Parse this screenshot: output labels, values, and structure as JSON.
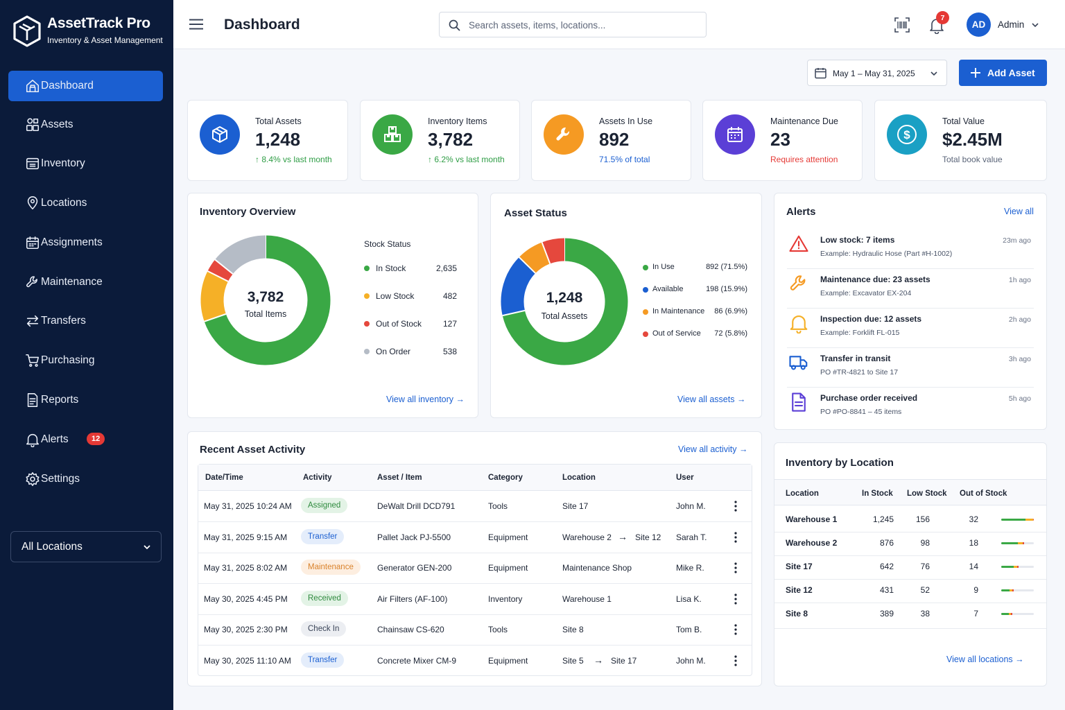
{
  "app": {
    "title": "AssetTrack Pro",
    "subtitle": "Inventory & Asset Management"
  },
  "sidebar": {
    "items": [
      {
        "label": "Dashboard",
        "icon": "home-icon",
        "active": true
      },
      {
        "label": "Assets",
        "icon": "assets-icon"
      },
      {
        "label": "Inventory",
        "icon": "inventory-icon"
      },
      {
        "label": "Locations",
        "icon": "location-pin-icon"
      },
      {
        "label": "Assignments",
        "icon": "calendar-icon"
      },
      {
        "label": "Maintenance",
        "icon": "wrench-icon"
      },
      {
        "label": "Transfers",
        "icon": "transfer-arrows-icon"
      },
      {
        "label": "Purchasing",
        "icon": "cart-icon"
      },
      {
        "label": "Reports",
        "icon": "report-icon"
      },
      {
        "label": "Alerts",
        "icon": "bell-icon",
        "badge": "12"
      },
      {
        "label": "Settings",
        "icon": "gear-icon"
      }
    ],
    "location_select": "All Locations"
  },
  "header": {
    "page_title": "Dashboard",
    "search_placeholder": "Search assets, items, locations...",
    "notification_count": "7",
    "avatar_initials": "AD",
    "user_name": "Admin"
  },
  "toolbar": {
    "date_range": "May 1 – May 31, 2025",
    "add_asset_label": "Add Asset"
  },
  "colors": {
    "primary": "#1b5fd1",
    "green": "#3aa845",
    "orange": "#f59a23",
    "red": "#e53935",
    "purple": "#5b3fd6",
    "teal": "#1aa0c4",
    "gray": "#b5bcc6"
  },
  "kpis": [
    {
      "label": "Total Assets",
      "value": "1,248",
      "sub": "↑ 8.4% vs last month",
      "icon": "cube-icon",
      "color": "#1b5fd1",
      "sub_color": "#2e9d45"
    },
    {
      "label": "Inventory Items",
      "value": "3,782",
      "sub": "↑ 6.2% vs last month",
      "icon": "boxes-icon",
      "color": "#3aa845",
      "sub_color": "#2e9d45"
    },
    {
      "label": "Assets In Use",
      "value": "892",
      "sub": "71.5% of total",
      "icon": "wrench-icon",
      "color": "#f59a23",
      "sub_color": "#1b5fd1"
    },
    {
      "label": "Maintenance Due",
      "value": "23",
      "sub": "Requires attention",
      "icon": "calendar-icon",
      "color": "#5b3fd6",
      "sub_color": "#e53935"
    },
    {
      "label": "Total Value",
      "value": "$2.45M",
      "sub": "Total book value",
      "icon": "dollar-icon",
      "color": "#1aa0c4",
      "sub_color": "#5a6478"
    }
  ],
  "inventory_overview": {
    "title": "Inventory Overview",
    "center_value": "3,782",
    "center_label": "Total Items",
    "legend_title": "Stock Status",
    "rows": [
      {
        "label": "In Stock",
        "value": "2,635",
        "color": "#3aa845"
      },
      {
        "label": "Low Stock",
        "value": "482",
        "color": "#f5b027"
      },
      {
        "label": "Out of Stock",
        "value": "127",
        "color": "#e5483d"
      },
      {
        "label": "On Order",
        "value": "538",
        "color": "#b5bcc6"
      }
    ],
    "link": "View all inventory"
  },
  "asset_status": {
    "title": "Asset Status",
    "center_value": "1,248",
    "center_label": "Total Assets",
    "rows": [
      {
        "label": "In Use",
        "value": "892 (71.5%)",
        "color": "#3aa845"
      },
      {
        "label": "Available",
        "value": "198 (15.9%)",
        "color": "#1b5fd1"
      },
      {
        "label": "In Maintenance",
        "value": "86 (6.9%)",
        "color": "#f59a23"
      },
      {
        "label": "Out of Service",
        "value": "72 (5.8%)",
        "color": "#e5483d"
      }
    ],
    "link": "View all assets"
  },
  "chart_data": [
    {
      "type": "pie",
      "title": "Inventory Overview",
      "categories": [
        "In Stock",
        "Low Stock",
        "Out of Stock",
        "On Order"
      ],
      "values": [
        2635,
        482,
        127,
        538
      ],
      "total": 3782
    },
    {
      "type": "pie",
      "title": "Asset Status",
      "categories": [
        "In Use",
        "Available",
        "In Maintenance",
        "Out of Service"
      ],
      "values": [
        892,
        198,
        86,
        72
      ],
      "total": 1248
    }
  ],
  "alerts": {
    "title": "Alerts",
    "link": "View all",
    "items": [
      {
        "title": "Low stock: 7 items",
        "sub": "Example: Hydraulic Hose (Part #H-1002)",
        "time": "23m ago",
        "icon": "warning-icon"
      },
      {
        "title": "Maintenance due: 23 assets",
        "sub": "Example: Excavator EX-204",
        "time": "1h ago",
        "icon": "wrench-icon"
      },
      {
        "title": "Inspection due: 12 assets",
        "sub": "Example: Forklift FL-015",
        "time": "2h ago",
        "icon": "bell-icon"
      },
      {
        "title": "Transfer in transit",
        "sub": "PO #TR-4821 to Site 17",
        "time": "3h ago",
        "icon": "truck-icon"
      },
      {
        "title": "Purchase order received",
        "sub": "PO #PO-8841 – 45 items",
        "time": "5h ago",
        "icon": "document-icon"
      }
    ]
  },
  "activity": {
    "title": "Recent Asset Activity",
    "link": "View all activity",
    "headers": [
      "Date/Time",
      "Activity",
      "Asset / Item",
      "Category",
      "Location",
      "User"
    ],
    "rows": [
      {
        "date": "May 31, 2025 10:24 AM",
        "activity": "Assigned",
        "asset": "DeWalt Drill DCD791",
        "category": "Tools",
        "loc_from": "Site 17",
        "loc_to": "",
        "user": "John M."
      },
      {
        "date": "May 31, 2025 9:15 AM",
        "activity": "Transfer",
        "asset": "Pallet Jack PJ-5500",
        "category": "Equipment",
        "loc_from": "Warehouse 2",
        "loc_to": "Site 12",
        "user": "Sarah T."
      },
      {
        "date": "May 31, 2025 8:02 AM",
        "activity": "Maintenance",
        "asset": "Generator GEN-200",
        "category": "Equipment",
        "loc_from": "Maintenance Shop",
        "loc_to": "",
        "user": "Mike R."
      },
      {
        "date": "May 30, 2025 4:45 PM",
        "activity": "Received",
        "asset": "Air Filters (AF-100)",
        "category": "Inventory",
        "loc_from": "Warehouse 1",
        "loc_to": "",
        "user": "Lisa K."
      },
      {
        "date": "May 30, 2025 2:30 PM",
        "activity": "Check In",
        "asset": "Chainsaw CS-620",
        "category": "Tools",
        "loc_from": "Site 8",
        "loc_to": "",
        "user": "Tom B."
      },
      {
        "date": "May 30, 2025 11:10 AM",
        "activity": "Transfer",
        "asset": "Concrete Mixer CM-9",
        "category": "Equipment",
        "loc_from": "Site 5",
        "loc_to": "Site 17",
        "user": "John M."
      }
    ]
  },
  "by_location": {
    "title": "Inventory by Location",
    "headers": [
      "Location",
      "In Stock",
      "Low Stock",
      "Out of Stock"
    ],
    "rows": [
      {
        "location": "Warehouse 1",
        "in_stock": "1,245",
        "low": "156",
        "out": "32"
      },
      {
        "location": "Warehouse 2",
        "in_stock": "876",
        "low": "98",
        "out": "18"
      },
      {
        "location": "Site 17",
        "in_stock": "642",
        "low": "76",
        "out": "14"
      },
      {
        "location": "Site 12",
        "in_stock": "431",
        "low": "52",
        "out": "9"
      },
      {
        "location": "Site 8",
        "in_stock": "389",
        "low": "38",
        "out": "7"
      }
    ],
    "link": "View all locations"
  }
}
